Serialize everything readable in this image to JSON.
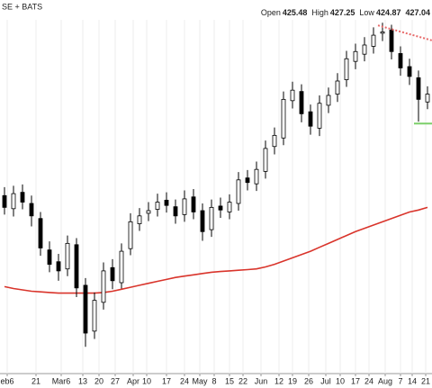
{
  "chart_data": {
    "type": "candlestick",
    "exchange": "SE + BATS",
    "quote": [
      {
        "label": "Open",
        "value": 425.48
      },
      {
        "label": "High",
        "value": 427.25
      },
      {
        "label": "Low",
        "value": 424.87
      }
    ],
    "last": 427.04,
    "open": [
      401.5,
      399.5,
      402,
      400.3,
      398,
      393.2,
      391.4,
      390.3,
      394,
      387.8,
      380.8,
      385.2,
      390.5,
      388.2,
      393.4,
      397.2,
      398.8,
      399.4,
      400.8,
      399.8,
      398.6,
      401.3,
      399.2,
      396.3,
      399.9,
      399,
      400.3,
      404.2,
      403.3,
      405.2,
      409,
      410.3,
      416,
      417.4,
      414.3,
      411.8,
      415.3,
      417,
      419.2,
      422,
      423.1,
      424.3,
      426.3,
      426.8,
      423.2,
      421.2,
      419.5,
      415.8
    ],
    "high": [
      402.8,
      403,
      403.2,
      401.5,
      399,
      394.5,
      392.6,
      395.4,
      395,
      388.9,
      386.7,
      391.3,
      391.8,
      394.2,
      398.8,
      399.6,
      400.5,
      401.8,
      402,
      400.9,
      402.3,
      402.5,
      400.3,
      400.9,
      401.2,
      401.7,
      405.1,
      405.4,
      406.7,
      409.9,
      411.9,
      417.4,
      418.9,
      418.5,
      415.4,
      416.8,
      418,
      420.2,
      423.6,
      424.7,
      425.7,
      427.2,
      427.9,
      427.6,
      424.3,
      422.4,
      420.6,
      418.2
    ],
    "low": [
      398.6,
      398.3,
      399.4,
      396.8,
      392.3,
      389.8,
      388.5,
      389.2,
      386,
      378.4,
      379.6,
      384.1,
      387.2,
      387.3,
      392.4,
      396.1,
      397.6,
      398.3,
      398.9,
      397.2,
      397.5,
      397.9,
      394.6,
      395.2,
      398.1,
      397.9,
      399.2,
      402.3,
      402.2,
      404.1,
      407.8,
      409.2,
      414.8,
      412.7,
      410.8,
      410.6,
      414.1,
      415.8,
      418.1,
      420.8,
      422,
      423.2,
      425.1,
      422.3,
      419.8,
      418.4,
      412.8,
      414.7
    ],
    "close": [
      399.7,
      401.8,
      400.5,
      398.4,
      393.5,
      391,
      390,
      394.2,
      387.4,
      380.5,
      385.5,
      390,
      388.5,
      393,
      397.5,
      398.4,
      399.2,
      400.5,
      400,
      398.4,
      401,
      399,
      396,
      399.7,
      399.3,
      400.5,
      403.9,
      403.5,
      405.5,
      408.7,
      410.7,
      416.2,
      417.6,
      414,
      412.1,
      415.6,
      416.8,
      419,
      422.4,
      423.5,
      424.5,
      426,
      426.5,
      423.5,
      421,
      419.7,
      416.2,
      417
    ],
    "up_color": "#ffffff",
    "down_color": "#000000",
    "moving_average": {
      "color": "#d9342b",
      "values": [
        387.6,
        387.3,
        387.1,
        386.9,
        386.8,
        386.7,
        386.6,
        386.6,
        386.6,
        386.6,
        386.6,
        386.7,
        386.9,
        387.2,
        387.5,
        387.8,
        388.1,
        388.4,
        388.7,
        389,
        389.2,
        389.4,
        389.6,
        389.8,
        389.9,
        390,
        390.1,
        390.2,
        390.3,
        390.6,
        391,
        391.5,
        392,
        392.5,
        393,
        393.6,
        394.2,
        394.8,
        395.4,
        396,
        396.5,
        397,
        397.5,
        398,
        398.5,
        399,
        399.3,
        399.7
      ]
    },
    "trend_line": {
      "x": [
        41.5,
        47.5
      ],
      "values": [
        427.5,
        425.2
      ],
      "color": "#e86a6a"
    },
    "support_line": {
      "x": [
        45.5,
        47.5
      ],
      "values": [
        412.5,
        412.5
      ],
      "color": "#7ccf6a"
    },
    "xlim": [
      0,
      47.5
    ],
    "ylim": [
      375,
      430
    ],
    "xticks": [
      {
        "value": 0.3,
        "label": "eb6"
      },
      {
        "value": 3.5,
        "label": "21"
      },
      {
        "value": 6.3,
        "label": "Mar6"
      },
      {
        "value": 8.7,
        "label": "13"
      },
      {
        "value": 10.5,
        "label": "20"
      },
      {
        "value": 12.3,
        "label": "27"
      },
      {
        "value": 14.3,
        "label": "Apr"
      },
      {
        "value": 15.8,
        "label": "10"
      },
      {
        "value": 18,
        "label": "17"
      },
      {
        "value": 20,
        "label": "24"
      },
      {
        "value": 21.7,
        "label": "May"
      },
      {
        "value": 23.3,
        "label": "8"
      },
      {
        "value": 25,
        "label": "15"
      },
      {
        "value": 26.5,
        "label": "22"
      },
      {
        "value": 28.5,
        "label": "Jun"
      },
      {
        "value": 30.5,
        "label": "12"
      },
      {
        "value": 32,
        "label": "19"
      },
      {
        "value": 33.8,
        "label": "26"
      },
      {
        "value": 35.7,
        "label": "Jul"
      },
      {
        "value": 37.3,
        "label": "10"
      },
      {
        "value": 39,
        "label": "17"
      },
      {
        "value": 40.5,
        "label": "24"
      },
      {
        "value": 42.3,
        "label": "Aug"
      },
      {
        "value": 44,
        "label": "7"
      },
      {
        "value": 45.3,
        "label": "14"
      },
      {
        "value": 46.8,
        "label": "21"
      }
    ],
    "grid": true
  }
}
